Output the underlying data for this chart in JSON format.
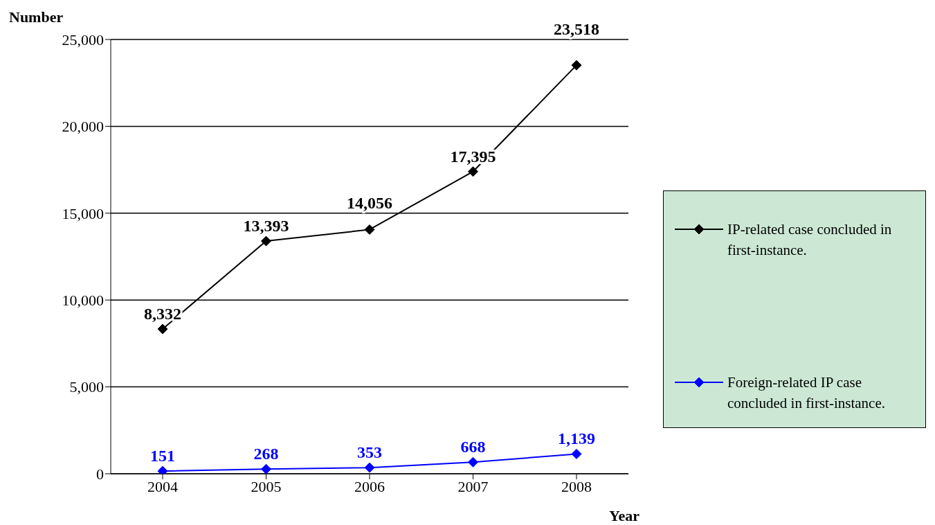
{
  "chart_data": {
    "type": "line",
    "xlabel": "Year",
    "ylabel": "Number",
    "categories": [
      "2004",
      "2005",
      "2006",
      "2007",
      "2008"
    ],
    "series": [
      {
        "name": "IP-related case concluded in first-instance.",
        "color": "#000000",
        "values": [
          8332,
          13393,
          14056,
          17395,
          23518
        ],
        "value_labels": [
          "8,332",
          "13,393",
          "14,056",
          "17,395",
          "23,518"
        ]
      },
      {
        "name": "Foreign-related IP case concluded in first-instance.",
        "color": "#0000ff",
        "values": [
          151,
          268,
          353,
          668,
          1139
        ],
        "value_labels": [
          "151",
          "268",
          "353",
          "668",
          "1,139"
        ]
      }
    ],
    "ylim": [
      0,
      25000
    ],
    "yticks": [
      {
        "value": 0,
        "label": "0"
      },
      {
        "value": 5000,
        "label": "5,000"
      },
      {
        "value": 10000,
        "label": "10,000"
      },
      {
        "value": 15000,
        "label": "15,000"
      },
      {
        "value": 20000,
        "label": "20,000"
      },
      {
        "value": 25000,
        "label": "25,000"
      }
    ],
    "grid": "y",
    "legend": "right",
    "marker": "diamond",
    "line_style": "solid"
  }
}
